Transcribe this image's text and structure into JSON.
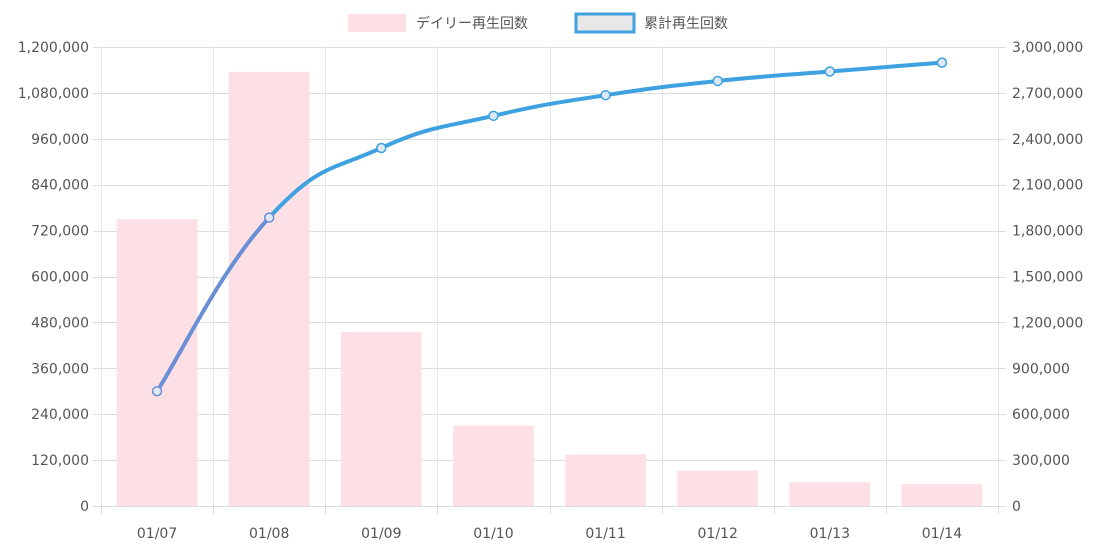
{
  "chart_data": {
    "type": "bar",
    "categories": [
      "01/07",
      "01/08",
      "01/09",
      "01/10",
      "01/11",
      "01/12",
      "01/13",
      "01/14"
    ],
    "series": [
      {
        "name": "デイリー再生回数",
        "type": "bar",
        "axis": "left",
        "values": [
          750000,
          1135000,
          455000,
          210000,
          135000,
          93000,
          62000,
          58000
        ]
      },
      {
        "name": "累計再生回数",
        "type": "line",
        "axis": "right",
        "values": [
          750000,
          1885000,
          2340000,
          2550000,
          2685000,
          2778000,
          2840000,
          2898000
        ]
      }
    ],
    "y_left": {
      "min": 0,
      "max": 1200000,
      "ticks": [
        0,
        120000,
        240000,
        360000,
        480000,
        600000,
        720000,
        840000,
        960000,
        1080000,
        1200000
      ],
      "tick_labels": [
        "0",
        "120,000",
        "240,000",
        "360,000",
        "480,000",
        "600,000",
        "720,000",
        "840,000",
        "960,000",
        "1,080,000",
        "1,200,000"
      ]
    },
    "y_right": {
      "min": 0,
      "max": 3000000,
      "ticks": [
        0,
        300000,
        600000,
        900000,
        1200000,
        1500000,
        1800000,
        2100000,
        2400000,
        2700000,
        3000000
      ],
      "tick_labels": [
        "0",
        "300,000",
        "600,000",
        "900,000",
        "1,200,000",
        "1,500,000",
        "1,800,000",
        "2,100,000",
        "2,400,000",
        "2,700,000",
        "3,000,000"
      ]
    },
    "grid": true,
    "legend_position": "top",
    "colors": {
      "bar_fill": "#fde0e6",
      "line": "#3ea1e0",
      "line_early": "#6b8fd4",
      "point_fill": "#dce8f5",
      "legend_line_box_fill": "#e8e8e8",
      "grid": "#dddddd",
      "axis_text": "#555555"
    }
  }
}
